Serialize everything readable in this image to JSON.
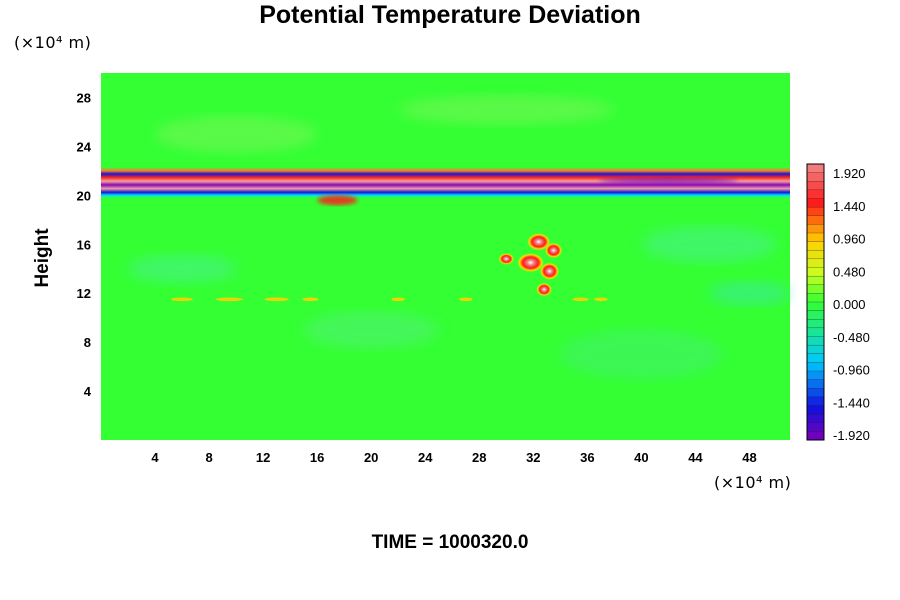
{
  "chart_data": {
    "type": "heatmap",
    "title": "Potential Temperature Deviation",
    "ylabel": "Height",
    "y_unit": "(×10⁴ m)",
    "x_unit": "(×10⁴ m)",
    "footer": "TIME = 1000320.0",
    "xlim": [
      0,
      51
    ],
    "ylim": [
      0,
      30
    ],
    "x_ticks": [
      "4",
      "8",
      "12",
      "16",
      "20",
      "24",
      "28",
      "32",
      "36",
      "40",
      "44",
      "48"
    ],
    "y_ticks": [
      "28",
      "24",
      "20",
      "16",
      "12",
      "8",
      "4"
    ],
    "colorbar_labels": [
      "1.920",
      "1.440",
      "0.960",
      "0.480",
      "0.000",
      "-0.480",
      "-0.960",
      "-1.440",
      "-1.920"
    ],
    "colorbar_range": [
      -1.92,
      1.92
    ],
    "background_value": 0.0,
    "features": [
      {
        "type": "band",
        "description": "strong positive/negative stratified layer",
        "y_range": [
          19.8,
          22.3
        ],
        "sign": "alternating",
        "max_abs": 1.92
      },
      {
        "type": "plume",
        "description": "positive convective cell",
        "x_center": 32.5,
        "y_range": [
          11.5,
          17.0
        ],
        "max": 1.92
      },
      {
        "type": "layer",
        "description": "weak positive streaks",
        "y": 11.5,
        "x_range": [
          5,
          36
        ],
        "max": 0.7
      }
    ],
    "colors": {
      "min": "#7a00b8",
      "neg_mid": "#00c8ff",
      "zero": "#33ff33",
      "pos_mid": "#ffd000",
      "pos_high": "#ff1a1a",
      "max": "#f08888"
    }
  }
}
